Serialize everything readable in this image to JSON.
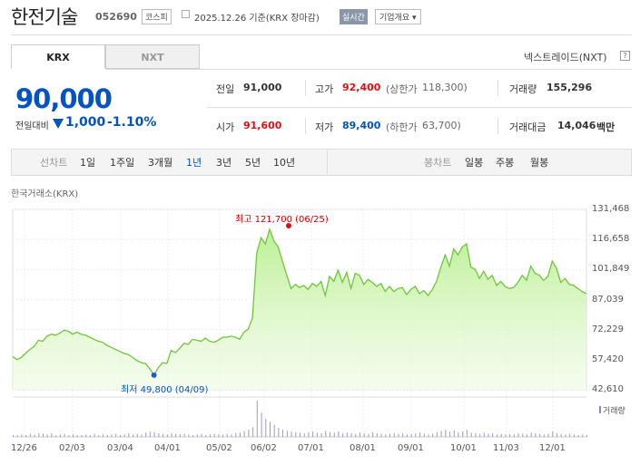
{
  "header": {
    "name": "한전기술",
    "code": "052690",
    "market": "코스피",
    "date_text": "2025.12.26 기준(KRX 장마감)",
    "realtime": "실시간",
    "corp_info": "기업개요 ▾"
  },
  "tabs": {
    "krx": "KRX",
    "nxt": "NXT",
    "nxt_link": "넥스트레이드(NXT)",
    "help": "?"
  },
  "price": {
    "current": "90,000",
    "change_label": "전일대비",
    "change_value": "1,000",
    "change_pct": "-1.10%"
  },
  "quote": {
    "prev_label": "전일",
    "prev_value": "91,000",
    "high_label": "고가",
    "high_value": "92,400",
    "upper_label": "(상한가",
    "upper_value": "118,300)",
    "volume_label": "거래량",
    "volume_value": "155,296",
    "open_label": "시가",
    "open_value": "91,600",
    "low_label": "저가",
    "low_value": "89,400",
    "lower_label": "(하한가",
    "lower_value": "63,700)",
    "amount_label": "거래대금",
    "amount_value": "14,046",
    "amount_unit": "백만"
  },
  "periods": {
    "line_chart_label": "선차트",
    "items": [
      "1일",
      "1주일",
      "3개월",
      "1년",
      "3년",
      "5년",
      "10년"
    ],
    "selected": "1년",
    "candle_label": "봉차트",
    "candle_items": [
      "일봉",
      "주봉",
      "월봉"
    ]
  },
  "chart_data": {
    "type": "area",
    "source": "한국거래소(KRX)",
    "high_label": "최고 121,700 (06/25)",
    "low_label": "최저 49,800 (04/09)",
    "y_ticks": [
      "131,468",
      "116,658",
      "101,849",
      "87,039",
      "72,229",
      "57,420",
      "42,610"
    ],
    "ylim": [
      42610,
      131468
    ],
    "x_ticks": [
      "12/26",
      "02/03",
      "03/04",
      "04/01",
      "05/02",
      "06/02",
      "07/01",
      "08/01",
      "09/01",
      "10/01",
      "11/03",
      "12/01"
    ],
    "volume_label": "거래량",
    "series": [
      {
        "values": [
          59000,
          57500,
          58500,
          60500,
          62500,
          64000,
          67000,
          66500,
          69000,
          70000,
          69500,
          70500,
          72000,
          71500,
          70000,
          71000,
          70000,
          69500,
          68500,
          67500,
          66500,
          66000,
          64500,
          63500,
          62500,
          61500,
          60500,
          60000,
          58500,
          57000,
          56000,
          55500,
          53000,
          49800,
          53500,
          56000,
          55500,
          62000,
          61000,
          63000,
          65500,
          65000,
          67500,
          67000,
          66500,
          68000,
          66500,
          66000,
          67000,
          68500,
          68500,
          69000,
          68500,
          67500,
          71000,
          72500,
          78000,
          110000,
          117500,
          114500,
          121700,
          116000,
          113000,
          106000,
          99000,
          92500,
          94500,
          93000,
          94000,
          92000,
          95000,
          93500,
          96000,
          89000,
          98500,
          96000,
          101500,
          95500,
          100500,
          92500,
          100000,
          99000,
          94500,
          97000,
          95500,
          93500,
          95000,
          91000,
          93500,
          91000,
          92500,
          93000,
          89500,
          92000,
          93500,
          90000,
          91500,
          89000,
          92000,
          96000,
          103000,
          109000,
          103500,
          112000,
          109000,
          113000,
          114500,
          103000,
          102000,
          97500,
          101000,
          97000,
          99000,
          94000,
          96000,
          93500,
          92500,
          93000,
          95500,
          99000,
          96500,
          103500,
          100000,
          99000,
          96500,
          98500,
          106000,
          102500,
          95500,
          97500,
          94500,
          94000,
          92500,
          91000,
          90000
        ]
      }
    ],
    "volume": [
      3,
      3,
      4,
      3,
      5,
      4,
      6,
      5,
      4,
      6,
      3,
      4,
      5,
      3,
      4,
      3,
      3,
      4,
      3,
      5,
      3,
      4,
      3,
      4,
      5,
      3,
      4,
      6,
      4,
      5,
      4,
      7,
      9,
      8,
      6,
      5,
      4,
      6,
      5,
      4,
      5,
      4,
      3,
      4,
      5,
      3,
      4,
      5,
      4,
      4,
      5,
      4,
      6,
      7,
      10,
      12,
      16,
      60,
      40,
      30,
      25,
      20,
      15,
      12,
      10,
      9,
      8,
      7,
      6,
      8,
      9,
      7,
      6,
      10,
      8,
      7,
      9,
      6,
      7,
      6,
      5,
      7,
      6,
      5,
      8,
      6,
      5,
      4,
      5,
      6,
      5,
      6,
      4,
      5,
      6,
      7,
      5,
      4,
      5,
      8,
      10,
      12,
      9,
      11,
      8,
      9,
      12,
      7,
      6,
      5,
      7,
      5,
      6,
      4,
      5,
      4,
      5,
      4,
      6,
      5,
      4,
      7,
      6,
      5,
      4,
      5,
      9,
      6,
      5,
      4,
      5,
      4,
      3,
      4,
      3
    ]
  }
}
